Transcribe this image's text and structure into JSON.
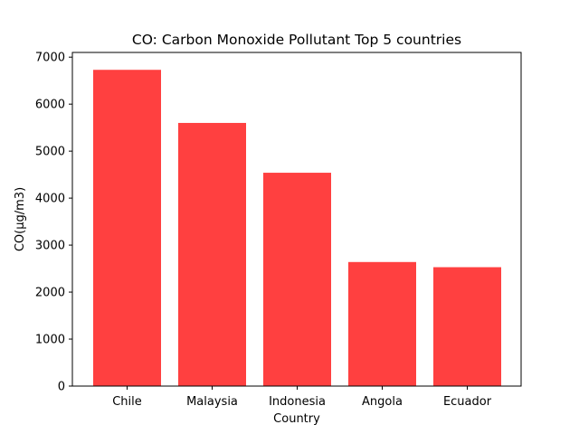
{
  "chart_data": {
    "type": "bar",
    "title": "CO: Carbon Monoxide Pollutant Top 5 countries",
    "xlabel": "Country",
    "ylabel": "CO(µg/m3)",
    "categories": [
      "Chile",
      "Malaysia",
      "Indonesia",
      "Angola",
      "Ecuador"
    ],
    "values": [
      6730,
      5600,
      4540,
      2640,
      2530
    ],
    "ylim": [
      0,
      7100
    ],
    "yticks": [
      0,
      1000,
      2000,
      3000,
      4000,
      5000,
      6000,
      7000
    ],
    "bar_color": "#ff4040",
    "grid": false,
    "legend": "none"
  }
}
